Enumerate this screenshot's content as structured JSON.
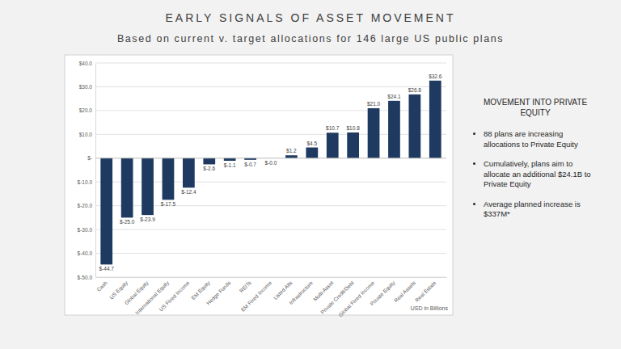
{
  "chart_data": {
    "type": "bar",
    "title": "EARLY SIGNALS OF ASSET MOVEMENT",
    "subtitle": "Based on current v. target allocations for 146 large US public plans",
    "categories": [
      "Cash",
      "US Equity",
      "Global Equity",
      "International Equity",
      "US Fixed Income",
      "EM Equity",
      "Hedge Funds",
      "REITs",
      "EM Fixed Income",
      "Listed Alts",
      "Infrastructure",
      "Multi-Asset",
      "Private Credit/Debt",
      "Global Fixed Income",
      "Private Equity",
      "Real Assets",
      "Real Estate"
    ],
    "values": [
      -44.7,
      -25.0,
      -23.9,
      -17.5,
      -12.4,
      -2.6,
      -1.1,
      -0.7,
      -0.02,
      1.2,
      4.5,
      10.7,
      10.8,
      21.0,
      24.1,
      26.8,
      32.6
    ],
    "value_labels": [
      "$-44.7",
      "$-25.0",
      "$-23.9",
      "$-17.5",
      "$-12.4",
      "$-2.6",
      "$-1.1",
      "$-0.7",
      "$-0.0",
      "$1.2",
      "$4.5",
      "$10.7",
      "$10.8",
      "$21.0",
      "$24.1",
      "$26.8",
      "$32.6"
    ],
    "color": "#1f3a60",
    "ylim": [
      -50,
      40
    ],
    "yticks": [
      {
        "value": -50,
        "label": "$-50.0"
      },
      {
        "value": -40,
        "label": "$-40.0"
      },
      {
        "value": -30,
        "label": "$-30.0"
      },
      {
        "value": -20,
        "label": "$-20.0"
      },
      {
        "value": -10,
        "label": "$-10.0"
      },
      {
        "value": 0,
        "label": "$-"
      },
      {
        "value": 10,
        "label": "$10.0"
      },
      {
        "value": 20,
        "label": "$20.0"
      },
      {
        "value": 30,
        "label": "$30.0"
      },
      {
        "value": 40,
        "label": "$40.0"
      }
    ],
    "grid": true,
    "data_labels": true,
    "annotations": [
      "USD in Billions"
    ]
  },
  "panel": {
    "heading": "MOVEMENT INTO PRIVATE EQUITY",
    "bullets": [
      "88 plans are increasing allocations to Private Equity",
      "Cumulatively, plans aim to allocate an additional $24.1B to Private Equity",
      "Average planned increase is $337M*"
    ]
  }
}
